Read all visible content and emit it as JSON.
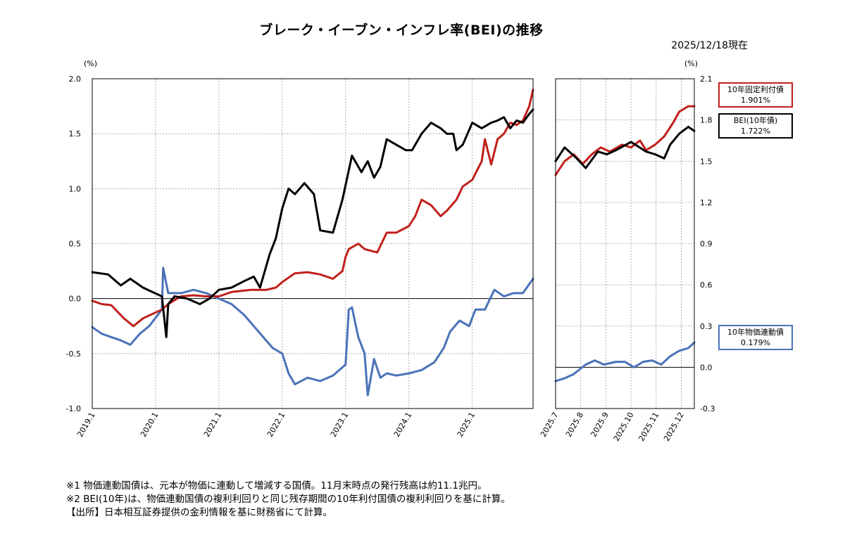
{
  "title": "ブレーク・イーブン・インフレ率(BEI)の推移",
  "as_of": "2025/12/18現在",
  "notes": [
    "※1 物価連動国債は、元本が物価に連動して増減する国債。11月末時点の発行残高は約11.1兆円。",
    "※2 BEI(10年)は、物価連動国債の複利利回りと同じ残存期間の10年利付国債の複利利回りを基に計算。",
    "【出所】日本相互証券提供の金利情報を基に財務省にて計算。"
  ],
  "legend": {
    "fixed": {
      "name": "10年固定利付債",
      "value": "1.901%"
    },
    "bei": {
      "name": "BEI(10年債)",
      "value": "1.722%"
    },
    "linked": {
      "name": "10年物価連動債",
      "value": "0.179%"
    }
  },
  "colors": {
    "fixed": "#c0201a",
    "bei": "#000000",
    "linked": "#4a72b8"
  },
  "chart_data": [
    {
      "type": "line",
      "ylabel": "(%)",
      "ylim": [
        -1.0,
        2.0
      ],
      "yticks": [
        "2.0",
        "1.5",
        "1.0",
        "0.5",
        "0.0",
        "-0.5",
        "-1.0"
      ],
      "xticks": [
        "2019.1",
        "2020.1",
        "2021.1",
        "2022.1",
        "2023.1",
        "2024.1",
        "2025.1"
      ],
      "x_start": 2019.0,
      "x_end": 2025.96,
      "grid": true,
      "series": [
        {
          "key": "bei",
          "name": "BEI(10年債)",
          "x": [
            2019.0,
            2019.25,
            2019.45,
            2019.6,
            2019.8,
            2020.1,
            2020.17,
            2020.2,
            2020.3,
            2020.5,
            2020.7,
            2020.85,
            2021.0,
            2021.2,
            2021.4,
            2021.55,
            2021.65,
            2021.8,
            2021.9,
            2022.0,
            2022.1,
            2022.2,
            2022.35,
            2022.5,
            2022.6,
            2022.8,
            2022.95,
            2023.1,
            2023.25,
            2023.35,
            2023.45,
            2023.55,
            2023.65,
            2023.8,
            2023.95,
            2024.05,
            2024.2,
            2024.35,
            2024.5,
            2024.6,
            2024.7,
            2024.75,
            2024.85,
            2025.0,
            2025.15,
            2025.3,
            2025.4,
            2025.5,
            2025.6,
            2025.7,
            2025.8,
            2025.9,
            2025.96
          ],
          "y": [
            0.24,
            0.22,
            0.12,
            0.18,
            0.1,
            0.02,
            -0.35,
            -0.05,
            0.02,
            0.0,
            -0.05,
            0.0,
            0.08,
            0.1,
            0.16,
            0.2,
            0.1,
            0.4,
            0.55,
            0.82,
            1.0,
            0.95,
            1.05,
            0.95,
            0.62,
            0.6,
            0.9,
            1.3,
            1.15,
            1.25,
            1.1,
            1.2,
            1.45,
            1.4,
            1.35,
            1.35,
            1.5,
            1.6,
            1.55,
            1.5,
            1.5,
            1.35,
            1.4,
            1.6,
            1.55,
            1.6,
            1.62,
            1.65,
            1.55,
            1.62,
            1.6,
            1.68,
            1.72
          ]
        },
        {
          "key": "fixed",
          "name": "10年固定利付債",
          "x": [
            2019.0,
            2019.15,
            2019.3,
            2019.5,
            2019.65,
            2019.8,
            2020.1,
            2020.2,
            2020.4,
            2020.6,
            2020.8,
            2021.0,
            2021.2,
            2021.5,
            2021.75,
            2021.9,
            2022.0,
            2022.2,
            2022.4,
            2022.6,
            2022.8,
            2022.95,
            2023.0,
            2023.05,
            2023.2,
            2023.3,
            2023.5,
            2023.65,
            2023.8,
            2024.0,
            2024.1,
            2024.2,
            2024.35,
            2024.5,
            2024.6,
            2024.75,
            2024.85,
            2025.0,
            2025.15,
            2025.2,
            2025.3,
            2025.4,
            2025.5,
            2025.6,
            2025.7,
            2025.8,
            2025.9,
            2025.96
          ],
          "y": [
            -0.02,
            -0.05,
            -0.06,
            -0.18,
            -0.25,
            -0.18,
            -0.1,
            -0.05,
            0.02,
            0.03,
            0.02,
            0.02,
            0.06,
            0.08,
            0.08,
            0.1,
            0.15,
            0.23,
            0.24,
            0.22,
            0.18,
            0.25,
            0.38,
            0.45,
            0.5,
            0.45,
            0.42,
            0.6,
            0.6,
            0.66,
            0.75,
            0.9,
            0.85,
            0.75,
            0.8,
            0.9,
            1.02,
            1.08,
            1.25,
            1.45,
            1.22,
            1.45,
            1.5,
            1.6,
            1.58,
            1.62,
            1.75,
            1.9
          ]
        },
        {
          "key": "linked",
          "name": "10年物価連動債",
          "x": [
            2019.0,
            2019.15,
            2019.3,
            2019.45,
            2019.6,
            2019.75,
            2019.9,
            2020.1,
            2020.12,
            2020.2,
            2020.4,
            2020.6,
            2020.8,
            2021.0,
            2021.2,
            2021.4,
            2021.55,
            2021.7,
            2021.85,
            2022.0,
            2022.1,
            2022.2,
            2022.4,
            2022.6,
            2022.8,
            2023.0,
            2023.05,
            2023.1,
            2023.2,
            2023.3,
            2023.35,
            2023.45,
            2023.55,
            2023.65,
            2023.8,
            2024.0,
            2024.2,
            2024.4,
            2024.55,
            2024.65,
            2024.8,
            2024.95,
            2025.05,
            2025.2,
            2025.35,
            2025.5,
            2025.65,
            2025.8,
            2025.96
          ],
          "y": [
            -0.26,
            -0.32,
            -0.35,
            -0.38,
            -0.42,
            -0.32,
            -0.25,
            -0.1,
            0.28,
            0.05,
            0.05,
            0.08,
            0.05,
            0.0,
            -0.05,
            -0.15,
            -0.25,
            -0.35,
            -0.45,
            -0.5,
            -0.68,
            -0.78,
            -0.72,
            -0.75,
            -0.7,
            -0.6,
            -0.1,
            -0.08,
            -0.35,
            -0.5,
            -0.88,
            -0.55,
            -0.72,
            -0.68,
            -0.7,
            -0.68,
            -0.65,
            -0.58,
            -0.45,
            -0.3,
            -0.2,
            -0.25,
            -0.1,
            -0.1,
            0.08,
            0.02,
            0.05,
            0.05,
            0.18
          ]
        }
      ]
    },
    {
      "type": "line",
      "ylabel": "(%)",
      "ylim": [
        -0.3,
        2.1
      ],
      "yticks": [
        "2.1",
        "1.8",
        "1.5",
        "1.2",
        "0.9",
        "0.6",
        "0.3",
        "0.0",
        "-0.3"
      ],
      "xticks": [
        "2025.7",
        "2025.8",
        "2025.9",
        "2025.10",
        "2025.11",
        "2025.12"
      ],
      "x_start": 2025.5,
      "x_end": 2025.96,
      "grid": true,
      "series": [
        {
          "key": "bei",
          "name": "BEI(10年債)",
          "x": [
            2025.5,
            2025.53,
            2025.57,
            2025.6,
            2025.64,
            2025.67,
            2025.7,
            2025.75,
            2025.8,
            2025.83,
            2025.86,
            2025.88,
            2025.91,
            2025.94,
            2025.96
          ],
          "y": [
            1.5,
            1.6,
            1.52,
            1.45,
            1.57,
            1.55,
            1.58,
            1.64,
            1.57,
            1.55,
            1.52,
            1.62,
            1.7,
            1.75,
            1.72
          ]
        },
        {
          "key": "fixed",
          "name": "10年固定利付債",
          "x": [
            2025.5,
            2025.53,
            2025.56,
            2025.59,
            2025.62,
            2025.65,
            2025.68,
            2025.72,
            2025.75,
            2025.78,
            2025.8,
            2025.83,
            2025.86,
            2025.89,
            2025.91,
            2025.94,
            2025.96
          ],
          "y": [
            1.4,
            1.5,
            1.55,
            1.48,
            1.55,
            1.6,
            1.57,
            1.62,
            1.6,
            1.65,
            1.58,
            1.62,
            1.68,
            1.78,
            1.86,
            1.9,
            1.9
          ]
        },
        {
          "key": "linked",
          "name": "10年物価連動債",
          "x": [
            2025.5,
            2025.53,
            2025.56,
            2025.6,
            2025.63,
            2025.66,
            2025.7,
            2025.73,
            2025.76,
            2025.79,
            2025.82,
            2025.85,
            2025.88,
            2025.91,
            2025.94,
            2025.96
          ],
          "y": [
            -0.1,
            -0.08,
            -0.05,
            0.02,
            0.05,
            0.02,
            0.04,
            0.04,
            0.0,
            0.04,
            0.05,
            0.02,
            0.08,
            0.12,
            0.14,
            0.18
          ]
        }
      ]
    }
  ]
}
